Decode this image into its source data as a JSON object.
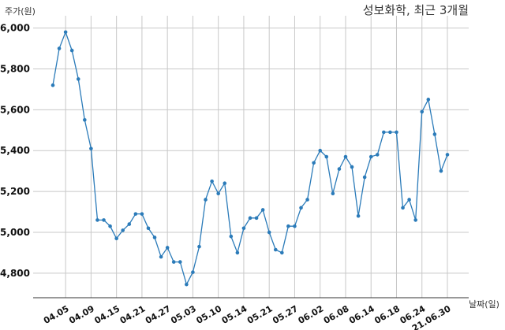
{
  "chart_data": {
    "type": "line",
    "title": "성보화학, 최근 3개월",
    "ylabel": "주가(원)",
    "xlabel": "날짜(일)",
    "ylim": [
      4680,
      6060
    ],
    "yticks": [
      4800,
      5000,
      5200,
      5400,
      5600,
      5800,
      6000
    ],
    "ytick_labels": [
      "4,800",
      "5,000",
      "5,200",
      "5,400",
      "5,600",
      "5,800",
      "6,000"
    ],
    "xtick_labels": [
      "04.05",
      "04.09",
      "04.15",
      "04.21",
      "04.27",
      "05.03",
      "05.10",
      "05.14",
      "05.21",
      "05.27",
      "06.02",
      "06.08",
      "06.14",
      "06.18",
      "06.24",
      "21.06.30"
    ],
    "xtick_index": [
      2,
      6,
      10,
      14,
      18,
      22,
      26,
      30,
      34,
      38,
      42,
      46,
      50,
      54,
      58,
      62
    ],
    "grid": true,
    "series": [
      {
        "color": "#2b7bb9",
        "values": [
          5720,
          5900,
          5980,
          5890,
          5750,
          5550,
          5410,
          5060,
          5060,
          5030,
          4970,
          5010,
          5040,
          5090,
          5090,
          5020,
          4975,
          4880,
          4925,
          4855,
          4855,
          4745,
          4805,
          4930,
          5160,
          5250,
          5190,
          5240,
          4980,
          4900,
          5020,
          5070,
          5070,
          5110,
          5000,
          4915,
          4900,
          5030,
          5030,
          5120,
          5160,
          5340,
          5400,
          5370,
          5190,
          5310,
          5370,
          5320,
          5080,
          5270,
          5370,
          5380,
          5490,
          5490,
          5490,
          5120,
          5160,
          5060,
          5590,
          5650,
          5480,
          5300,
          5380
        ]
      }
    ]
  }
}
